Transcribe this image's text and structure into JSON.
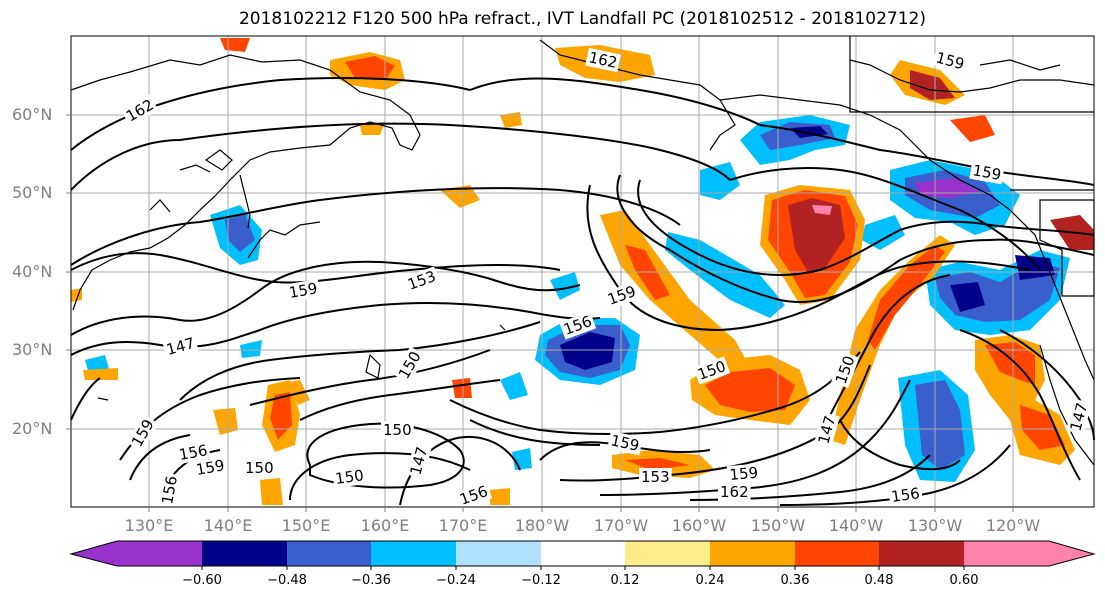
{
  "title": "2018102212 F120 500 hPa refract., IVT Landfall PC (2018102512 - 2018102712)",
  "lat_labels": [
    "60°N",
    "50°N",
    "40°N",
    "30°N",
    "20°N"
  ],
  "lon_labels": [
    "130°E",
    "140°E",
    "150°E",
    "160°E",
    "170°E",
    "180°W",
    "170°W",
    "160°W",
    "150°W",
    "140°W",
    "130°W",
    "120°W"
  ],
  "contour_labels": [
    "162",
    "162",
    "159",
    "159",
    "159",
    "153",
    "159",
    "156",
    "147",
    "150",
    "150",
    "150",
    "150",
    "150",
    "156",
    "147",
    "159",
    "156",
    "159",
    "150",
    "156",
    "159",
    "153",
    "159",
    "162",
    "156",
    "147",
    "147"
  ],
  "colorbar": {
    "tick_labels": [
      "−0.60",
      "−0.48",
      "−0.36",
      "−0.24",
      "−0.12",
      "0.12",
      "0.24",
      "0.36",
      "0.48",
      "0.60"
    ],
    "colors": [
      "#9932cc",
      "#00008b",
      "#3a5fcd",
      "#00bfff",
      "#b0e2ff",
      "#ffffff",
      "#ffec8b",
      "#ffa500",
      "#ff4500",
      "#b22222",
      "#ff82ab"
    ]
  },
  "colors": {
    "strong_negative": "#00008b",
    "negative": "#3a5fcd",
    "weak_negative": "#00bfff",
    "weak_positive": "#ffa500",
    "positive": "#ff4500",
    "strong_positive": "#b22222",
    "extreme_positive": "#ff82ab"
  }
}
